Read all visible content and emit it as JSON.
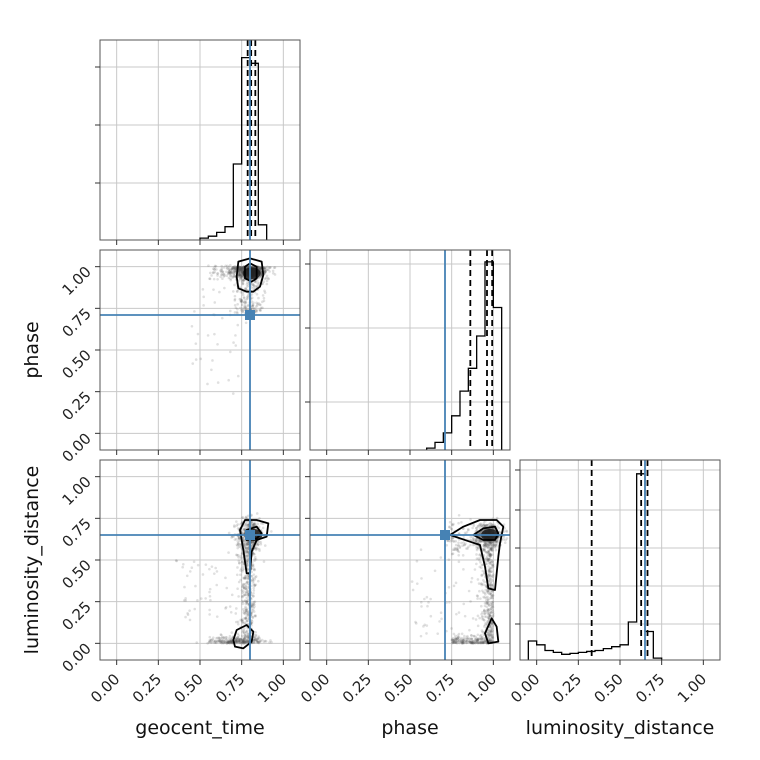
{
  "chart_data": {
    "type": "corner",
    "parameters": [
      "geocent_time",
      "phase",
      "luminosity_distance"
    ],
    "truths": [
      0.8,
      0.71,
      0.65
    ],
    "truth_color": "#4682b4",
    "axis_range": [
      -0.1,
      1.1
    ],
    "tick_values": [
      0.0,
      0.25,
      0.5,
      0.75,
      1.0
    ],
    "tick_labels": [
      "0.00",
      "0.25",
      "0.50",
      "0.75",
      "1.00"
    ],
    "grid": true,
    "histograms": [
      {
        "param": "geocent_time",
        "bins": [
          0.5,
          0.55,
          0.6,
          0.65,
          0.7,
          0.75,
          0.8,
          0.85,
          0.9
        ],
        "heights": [
          0.01,
          0.02,
          0.04,
          0.07,
          0.4,
          0.96,
          0.93,
          0.08
        ],
        "quantiles": [
          0.786,
          0.807,
          0.832
        ]
      },
      {
        "param": "phase",
        "bins": [
          0.6,
          0.65,
          0.7,
          0.75,
          0.8,
          0.85,
          0.9,
          0.95,
          1.0,
          1.05
        ],
        "heights": [
          0.01,
          0.04,
          0.09,
          0.18,
          0.31,
          0.43,
          0.6,
          0.99,
          0.75
        ],
        "quantiles": [
          0.862,
          0.962,
          0.993
        ]
      },
      {
        "param": "luminosity_distance",
        "bins": [
          -0.05,
          0.0,
          0.05,
          0.1,
          0.15,
          0.2,
          0.25,
          0.3,
          0.35,
          0.4,
          0.45,
          0.5,
          0.55,
          0.6,
          0.65,
          0.7,
          0.75
        ],
        "heights": [
          0.1,
          0.08,
          0.05,
          0.04,
          0.03,
          0.035,
          0.04,
          0.045,
          0.05,
          0.06,
          0.07,
          0.08,
          0.2,
          0.98,
          0.15,
          0.01
        ],
        "quantiles": [
          0.33,
          0.627,
          0.665
        ]
      }
    ],
    "contours": [
      {
        "x": "geocent_time",
        "y": "phase",
        "levels": [
          [
            [
              0.73,
              0.87
            ],
            [
              0.72,
              0.94
            ],
            [
              0.73,
              1.03
            ],
            [
              0.8,
              1.05
            ],
            [
              0.87,
              1.03
            ],
            [
              0.88,
              0.95
            ],
            [
              0.86,
              0.88
            ],
            [
              0.82,
              0.85
            ],
            [
              0.78,
              0.85
            ]
          ],
          [
            [
              0.77,
              0.93
            ],
            [
              0.77,
              1.0
            ],
            [
              0.8,
              1.02
            ],
            [
              0.84,
              1.0
            ],
            [
              0.84,
              0.93
            ],
            [
              0.81,
              0.91
            ]
          ]
        ],
        "dense_center": [
          0.81,
          0.96
        ]
      },
      {
        "x": "geocent_time",
        "y": "luminosity_distance",
        "levels": [
          [
            [
              0.76,
              0.56
            ],
            [
              0.74,
              0.68
            ],
            [
              0.77,
              0.74
            ],
            [
              0.84,
              0.74
            ],
            [
              0.91,
              0.72
            ],
            [
              0.9,
              0.64
            ],
            [
              0.84,
              0.62
            ],
            [
              0.81,
              0.55
            ],
            [
              0.8,
              0.42
            ],
            [
              0.78,
              0.42
            ]
          ],
          [
            [
              0.78,
              0.62
            ],
            [
              0.78,
              0.68
            ],
            [
              0.84,
              0.7
            ],
            [
              0.87,
              0.66
            ],
            [
              0.84,
              0.63
            ]
          ],
          [
            [
              0.7,
              0.02
            ],
            [
              0.72,
              0.08
            ],
            [
              0.78,
              0.11
            ],
            [
              0.82,
              0.07
            ],
            [
              0.81,
              0.01
            ],
            [
              0.76,
              -0.03
            ],
            [
              0.71,
              -0.02
            ]
          ]
        ],
        "dense_center": [
          0.82,
          0.65
        ]
      },
      {
        "x": "phase",
        "y": "luminosity_distance",
        "levels": [
          [
            [
              0.74,
              0.65
            ],
            [
              0.82,
              0.7
            ],
            [
              0.92,
              0.74
            ],
            [
              1.02,
              0.74
            ],
            [
              1.06,
              0.7
            ],
            [
              1.04,
              0.6
            ],
            [
              1.03,
              0.52
            ],
            [
              1.01,
              0.32
            ],
            [
              0.97,
              0.33
            ],
            [
              0.95,
              0.46
            ],
            [
              0.92,
              0.59
            ],
            [
              0.86,
              0.61
            ]
          ],
          [
            [
              0.88,
              0.65
            ],
            [
              0.94,
              0.69
            ],
            [
              1.01,
              0.7
            ],
            [
              1.03,
              0.66
            ],
            [
              1.01,
              0.62
            ],
            [
              0.94,
              0.62
            ]
          ],
          [
            [
              0.95,
              0.06
            ],
            [
              0.99,
              0.15
            ],
            [
              1.02,
              0.1
            ],
            [
              1.03,
              0.01
            ],
            [
              0.97,
              0.0
            ]
          ]
        ],
        "dense_center": [
          0.98,
          0.65
        ]
      }
    ]
  }
}
